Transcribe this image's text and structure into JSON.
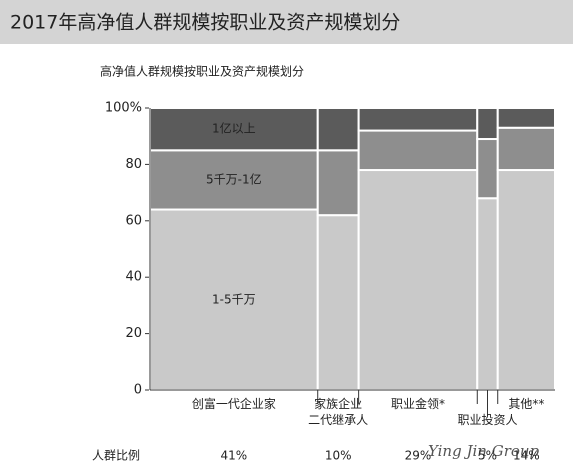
{
  "chart_data": {
    "type": "mekko",
    "title": "2017年高净值人群规模按职业及资产规模划分",
    "subtitle": "高净值人群规模按职业及资产规模划分",
    "categories": [
      "创富一代企业家",
      "家族企业\n二代继承人",
      "职业金领*",
      "职业投资人",
      "其他**"
    ],
    "share_title": "人群比例",
    "shares": [
      41,
      10,
      29,
      5,
      14
    ],
    "share_labels": [
      "41%",
      "10%",
      "29%",
      "5%",
      "14%"
    ],
    "series": [
      {
        "name": "1-5千万",
        "color": "#c9c9c9",
        "values": [
          64,
          62,
          78,
          68,
          78
        ]
      },
      {
        "name": "5千万-1亿",
        "color": "#8e8e8e",
        "values": [
          21,
          23,
          14,
          21,
          15
        ]
      },
      {
        "name": "1亿以上",
        "color": "#5b5b5b",
        "values": [
          15,
          15,
          8,
          11,
          7
        ]
      }
    ],
    "ylim": [
      0,
      100
    ],
    "yticks": [
      0,
      20,
      40,
      60,
      80,
      {
        "value": 100,
        "label": "100%"
      }
    ],
    "watermark": "Ying Jin Group"
  }
}
